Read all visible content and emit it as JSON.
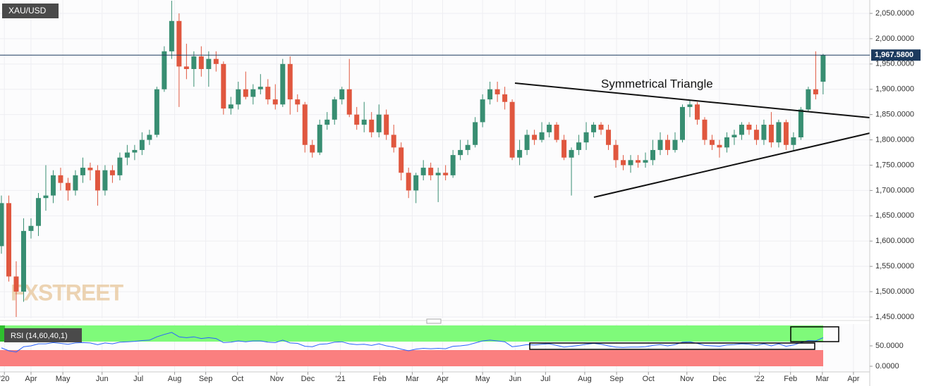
{
  "chart_data": [
    {
      "type": "candlestick",
      "symbol": "XAU/USD",
      "watermark": "FXSTREET",
      "annotation": "Symmetrical Triangle",
      "up_color": "#388e72",
      "down_color": "#e0573f",
      "grid": true,
      "xlim": [
        -0.19,
        117.3
      ],
      "ylim": [
        1447.2,
        2076.45
      ],
      "xticks": [
        {
          "value": 0.4,
          "label": "'20"
        },
        {
          "value": 4.0,
          "label": "Apr"
        },
        {
          "value": 8.3,
          "label": "May"
        },
        {
          "value": 13.6,
          "label": "Jun"
        },
        {
          "value": 18.5,
          "label": "Jul"
        },
        {
          "value": 23.4,
          "label": "Aug"
        },
        {
          "value": 27.6,
          "label": "Sep"
        },
        {
          "value": 31.9,
          "label": "Oct"
        },
        {
          "value": 37.2,
          "label": "Nov"
        },
        {
          "value": 41.4,
          "label": "Dec"
        },
        {
          "value": 45.8,
          "label": "'21"
        },
        {
          "value": 51.1,
          "label": "Feb"
        },
        {
          "value": 55.5,
          "label": "Mar"
        },
        {
          "value": 59.6,
          "label": "Apr"
        },
        {
          "value": 65.0,
          "label": "May"
        },
        {
          "value": 69.4,
          "label": "Jun"
        },
        {
          "value": 73.5,
          "label": "Jul"
        },
        {
          "value": 78.8,
          "label": "Aug"
        },
        {
          "value": 83.1,
          "label": "Sep"
        },
        {
          "value": 87.4,
          "label": "Oct"
        },
        {
          "value": 92.6,
          "label": "Nov"
        },
        {
          "value": 97.0,
          "label": "Dec"
        },
        {
          "value": 102.4,
          "label": "'22"
        },
        {
          "value": 106.6,
          "label": "Feb"
        },
        {
          "value": 110.9,
          "label": "Mar"
        },
        {
          "value": 115.1,
          "label": "Apr"
        }
      ],
      "yticks": [
        {
          "value": 1450,
          "label": "1,450.0000"
        },
        {
          "value": 1500,
          "label": "1,500.0000"
        },
        {
          "value": 1550,
          "label": "1,550.0000"
        },
        {
          "value": 1600,
          "label": "1,600.0000"
        },
        {
          "value": 1650,
          "label": "1,650.0000"
        },
        {
          "value": 1700,
          "label": "1,700.0000"
        },
        {
          "value": 1750,
          "label": "1,750.0000"
        },
        {
          "value": 1800,
          "label": "1,800.0000"
        },
        {
          "value": 1850,
          "label": "1,850.0000"
        },
        {
          "value": 1900,
          "label": "1,900.0000"
        },
        {
          "value": 1950,
          "label": "1,950.0000"
        },
        {
          "value": 2000,
          "label": "2,000.0000"
        },
        {
          "value": 2050,
          "label": "2,050.0000"
        }
      ],
      "last_price": {
        "value": 1967.58,
        "label": "1,967.5800"
      },
      "ohlc": [
        [
          1590,
          1690,
          1575,
          1675
        ],
        [
          1675,
          1690,
          1520,
          1530
        ],
        [
          1530,
          1560,
          1450,
          1500
        ],
        [
          1500,
          1645,
          1480,
          1620
        ],
        [
          1620,
          1645,
          1605,
          1630
        ],
        [
          1630,
          1695,
          1610,
          1685
        ],
        [
          1685,
          1750,
          1660,
          1690
        ],
        [
          1690,
          1740,
          1675,
          1730
        ],
        [
          1730,
          1745,
          1700,
          1715
        ],
        [
          1715,
          1725,
          1680,
          1700
        ],
        [
          1700,
          1740,
          1690,
          1730
        ],
        [
          1730,
          1765,
          1715,
          1745
        ],
        [
          1745,
          1755,
          1720,
          1740
        ],
        [
          1740,
          1750,
          1670,
          1700
        ],
        [
          1700,
          1750,
          1690,
          1740
        ],
        [
          1740,
          1750,
          1715,
          1730
        ],
        [
          1730,
          1775,
          1720,
          1765
        ],
        [
          1765,
          1790,
          1750,
          1775
        ],
        [
          1775,
          1790,
          1760,
          1780
        ],
        [
          1780,
          1815,
          1770,
          1800
        ],
        [
          1800,
          1820,
          1790,
          1810
        ],
        [
          1810,
          1905,
          1805,
          1900
        ],
        [
          1900,
          1985,
          1895,
          1975
        ],
        [
          1975,
          2075,
          1960,
          2035
        ],
        [
          2035,
          2050,
          1865,
          1945
        ],
        [
          1945,
          1990,
          1920,
          1940
        ],
        [
          1940,
          1975,
          1905,
          1965
        ],
        [
          1965,
          1985,
          1925,
          1940
        ],
        [
          1940,
          1975,
          1905,
          1960
        ],
        [
          1960,
          1975,
          1935,
          1950
        ],
        [
          1950,
          1955,
          1850,
          1862
        ],
        [
          1862,
          1885,
          1850,
          1870
        ],
        [
          1870,
          1915,
          1860,
          1900
        ],
        [
          1900,
          1935,
          1880,
          1885
        ],
        [
          1885,
          1910,
          1870,
          1900
        ],
        [
          1900,
          1930,
          1890,
          1905
        ],
        [
          1905,
          1920,
          1870,
          1880
        ],
        [
          1880,
          1910,
          1860,
          1870
        ],
        [
          1870,
          1960,
          1865,
          1950
        ],
        [
          1950,
          1965,
          1850,
          1880
        ],
        [
          1880,
          1890,
          1855,
          1870
        ],
        [
          1870,
          1875,
          1775,
          1790
        ],
        [
          1790,
          1800,
          1765,
          1775
        ],
        [
          1775,
          1840,
          1770,
          1830
        ],
        [
          1830,
          1855,
          1820,
          1840
        ],
        [
          1840,
          1885,
          1830,
          1880
        ],
        [
          1880,
          1905,
          1870,
          1900
        ],
        [
          1900,
          1960,
          1845,
          1850
        ],
        [
          1850,
          1865,
          1820,
          1830
        ],
        [
          1830,
          1875,
          1815,
          1840
        ],
        [
          1840,
          1855,
          1805,
          1815
        ],
        [
          1815,
          1870,
          1805,
          1850
        ],
        [
          1850,
          1860,
          1800,
          1810
        ],
        [
          1810,
          1830,
          1775,
          1785
        ],
        [
          1785,
          1795,
          1720,
          1735
        ],
        [
          1735,
          1745,
          1685,
          1700
        ],
        [
          1700,
          1735,
          1675,
          1730
        ],
        [
          1730,
          1760,
          1720,
          1745
        ],
        [
          1745,
          1755,
          1720,
          1730
        ],
        [
          1730,
          1745,
          1677,
          1735
        ],
        [
          1735,
          1750,
          1720,
          1730
        ],
        [
          1730,
          1780,
          1725,
          1770
        ],
        [
          1770,
          1800,
          1760,
          1780
        ],
        [
          1780,
          1800,
          1770,
          1790
        ],
        [
          1790,
          1845,
          1785,
          1835
        ],
        [
          1835,
          1890,
          1825,
          1880
        ],
        [
          1880,
          1915,
          1870,
          1900
        ],
        [
          1900,
          1915,
          1875,
          1890
        ],
        [
          1890,
          1905,
          1860,
          1875
        ],
        [
          1875,
          1880,
          1760,
          1765
        ],
        [
          1765,
          1800,
          1750,
          1780
        ],
        [
          1780,
          1820,
          1770,
          1810
        ],
        [
          1810,
          1820,
          1790,
          1800
        ],
        [
          1800,
          1835,
          1795,
          1815
        ],
        [
          1815,
          1835,
          1805,
          1830
        ],
        [
          1830,
          1835,
          1795,
          1800
        ],
        [
          1800,
          1810,
          1760,
          1765
        ],
        [
          1765,
          1785,
          1690,
          1780
        ],
        [
          1780,
          1810,
          1770,
          1795
        ],
        [
          1795,
          1835,
          1780,
          1815
        ],
        [
          1815,
          1835,
          1805,
          1830
        ],
        [
          1830,
          1835,
          1810,
          1820
        ],
        [
          1820,
          1830,
          1780,
          1790
        ],
        [
          1790,
          1800,
          1745,
          1760
        ],
        [
          1760,
          1770,
          1740,
          1750
        ],
        [
          1750,
          1770,
          1735,
          1760
        ],
        [
          1760,
          1770,
          1745,
          1755
        ],
        [
          1755,
          1775,
          1745,
          1760
        ],
        [
          1760,
          1800,
          1750,
          1780
        ],
        [
          1780,
          1815,
          1770,
          1800
        ],
        [
          1800,
          1810,
          1770,
          1780
        ],
        [
          1780,
          1815,
          1775,
          1800
        ],
        [
          1800,
          1870,
          1795,
          1865
        ],
        [
          1865,
          1878,
          1845,
          1870
        ],
        [
          1870,
          1875,
          1830,
          1840
        ],
        [
          1840,
          1845,
          1790,
          1800
        ],
        [
          1800,
          1810,
          1780,
          1790
        ],
        [
          1790,
          1800,
          1765,
          1785
        ],
        [
          1785,
          1815,
          1775,
          1805
        ],
        [
          1805,
          1820,
          1790,
          1810
        ],
        [
          1810,
          1835,
          1800,
          1830
        ],
        [
          1830,
          1835,
          1810,
          1820
        ],
        [
          1820,
          1830,
          1790,
          1800
        ],
        [
          1800,
          1840,
          1790,
          1830
        ],
        [
          1830,
          1855,
          1785,
          1795
        ],
        [
          1795,
          1840,
          1785,
          1835
        ],
        [
          1835,
          1840,
          1780,
          1790
        ],
        [
          1790,
          1815,
          1780,
          1805
        ],
        [
          1805,
          1865,
          1800,
          1860
        ],
        [
          1860,
          1905,
          1855,
          1900
        ],
        [
          1900,
          1975,
          1880,
          1890
        ],
        [
          1915,
          1970,
          1890,
          1967.58
        ]
      ]
    },
    {
      "type": "line",
      "title": "RSI (14,60,40,1)",
      "color": "#2962ff",
      "xlim": [
        -0.19,
        117.3
      ],
      "ylim": [
        -13.8,
        100
      ],
      "yticks": [
        {
          "value": 0,
          "label": "0.0000"
        },
        {
          "value": 50,
          "label": "50.0000"
        }
      ],
      "values": [
        45,
        38,
        35,
        48,
        50,
        55,
        55,
        58,
        56,
        54,
        57,
        58,
        57,
        53,
        57,
        55,
        59,
        60,
        61,
        63,
        64,
        72,
        78,
        83,
        72,
        70,
        72,
        68,
        70,
        68,
        58,
        59,
        62,
        60,
        62,
        62,
        59,
        58,
        64,
        57,
        56,
        49,
        48,
        54,
        55,
        59,
        60,
        55,
        53,
        54,
        51,
        55,
        50,
        47,
        42,
        38,
        42,
        44,
        43,
        44,
        43,
        49,
        50,
        52,
        57,
        62,
        64,
        62,
        60,
        48,
        50,
        53,
        52,
        54,
        55,
        51,
        47,
        49,
        51,
        54,
        56,
        54,
        50,
        47,
        46,
        47,
        47,
        48,
        51,
        53,
        50,
        53,
        59,
        60,
        56,
        51,
        50,
        49,
        52,
        53,
        55,
        54,
        51,
        55,
        50,
        55,
        49,
        52,
        58,
        63,
        62,
        70
      ]
    }
  ]
}
